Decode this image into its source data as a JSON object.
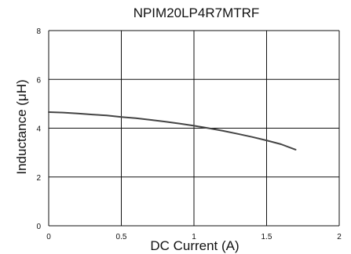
{
  "chart_data": {
    "type": "line",
    "title": "NPIM20LP4R7MTRF",
    "xlabel": "DC Current (A)",
    "ylabel": "Inductance (μH)",
    "xlim": [
      0,
      2
    ],
    "ylim": [
      0,
      8
    ],
    "xticks": [
      0,
      0.5,
      1,
      1.5,
      2
    ],
    "xtick_labels": [
      "0",
      "0.5",
      "1",
      "1.5",
      "2"
    ],
    "yticks": [
      0,
      2,
      4,
      6,
      8
    ],
    "ytick_labels": [
      "0",
      "2",
      "4",
      "6",
      "8"
    ],
    "grid": true,
    "series": [
      {
        "color": "#444444",
        "x": [
          0,
          0.1,
          0.2,
          0.3,
          0.4,
          0.5,
          0.6,
          0.7,
          0.8,
          0.9,
          1.0,
          1.1,
          1.2,
          1.3,
          1.4,
          1.5,
          1.6,
          1.7
        ],
        "y": [
          4.66,
          4.64,
          4.6,
          4.56,
          4.52,
          4.46,
          4.41,
          4.34,
          4.27,
          4.19,
          4.1,
          4.0,
          3.89,
          3.77,
          3.64,
          3.5,
          3.34,
          3.12
        ]
      }
    ]
  }
}
